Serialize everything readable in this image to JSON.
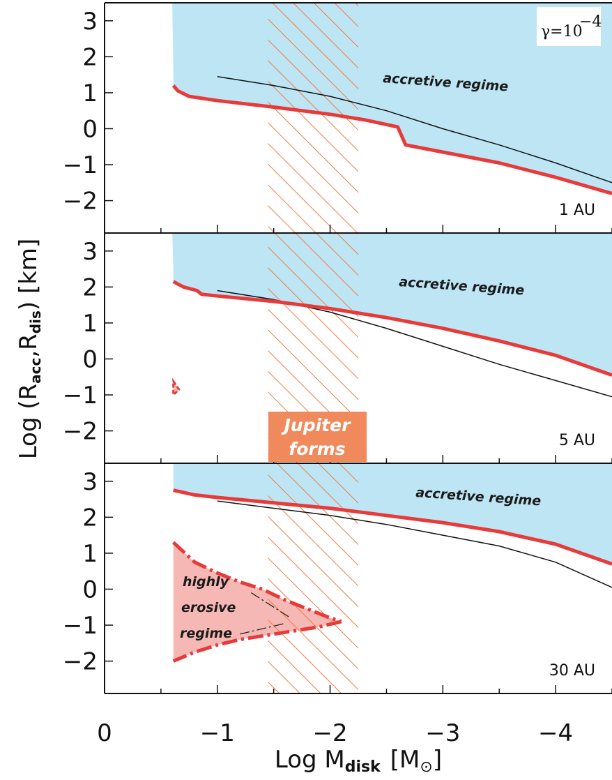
{
  "chart_data": {
    "type": "line",
    "xlabel": "Log M",
    "xlabel_sub": "disk",
    "xlabel_unit_open": "[M",
    "xlabel_unit_close": "]",
    "ylabel": "Log (R",
    "ylabel_sub1": "acc",
    "ylabel_mid": ",R",
    "ylabel_sub2": "dis",
    "ylabel_end": ") [km]",
    "x_ticks": [
      "0",
      "−1",
      "−2",
      "−3",
      "−4"
    ],
    "y_ticks": [
      "3",
      "2",
      "1",
      "0",
      "−1",
      "−2"
    ],
    "gamma_label": "γ=10",
    "gamma_exp": "−4",
    "jupiter_label_1": "Jupiter",
    "jupiter_label_2": "forms",
    "jupiter_band": [
      -1.45,
      -2.25
    ],
    "xlim": [
      0,
      -4.5
    ],
    "colors": {
      "accretive_fill": "#bde5f4",
      "red_curve": "#e83a3a",
      "erosive_fill": "#f6b8b5",
      "hatch": "#f07a42",
      "jupiter_box": "#f08a5c",
      "black_curve": "#111111"
    },
    "panels": [
      {
        "label": "1 AU",
        "regime_label": "accretive regime",
        "ylim": [
          -2.9,
          3.5
        ],
        "accretive_left_edge": [
          [
            -0.6,
            3.5
          ],
          [
            -0.61,
            1.6
          ]
        ],
        "red_curve": [
          [
            -0.61,
            1.2
          ],
          [
            -0.65,
            1.05
          ],
          [
            -0.75,
            0.9
          ],
          [
            -1.0,
            0.78
          ],
          [
            -1.5,
            0.6
          ],
          [
            -2.0,
            0.4
          ],
          [
            -2.3,
            0.25
          ],
          [
            -2.6,
            0.05
          ],
          [
            -2.67,
            -0.45
          ],
          [
            -3.0,
            -0.65
          ],
          [
            -3.5,
            -0.95
          ],
          [
            -4.0,
            -1.35
          ],
          [
            -4.5,
            -1.8
          ]
        ],
        "black_curve": [
          [
            -1.0,
            1.45
          ],
          [
            -1.5,
            1.2
          ],
          [
            -2.0,
            0.9
          ],
          [
            -2.5,
            0.5
          ],
          [
            -3.0,
            0.0
          ],
          [
            -3.5,
            -0.45
          ],
          [
            -4.0,
            -0.95
          ],
          [
            -4.5,
            -1.5
          ]
        ]
      },
      {
        "label": "5 AU",
        "regime_label": "accretive regime",
        "ylim": [
          -2.9,
          3.5
        ],
        "accretive_left_edge": [
          [
            -0.6,
            3.5
          ],
          [
            -0.61,
            2.5
          ]
        ],
        "red_curve": [
          [
            -0.61,
            2.15
          ],
          [
            -0.7,
            2.0
          ],
          [
            -0.82,
            1.9
          ],
          [
            -0.86,
            1.8
          ],
          [
            -1.0,
            1.75
          ],
          [
            -1.5,
            1.6
          ],
          [
            -2.0,
            1.4
          ],
          [
            -2.5,
            1.15
          ],
          [
            -3.0,
            0.85
          ],
          [
            -3.5,
            0.5
          ],
          [
            -4.0,
            0.1
          ],
          [
            -4.5,
            -0.45
          ]
        ],
        "black_curve": [
          [
            -1.0,
            1.9
          ],
          [
            -1.5,
            1.65
          ],
          [
            -2.0,
            1.3
          ],
          [
            -2.5,
            0.85
          ],
          [
            -3.0,
            0.35
          ],
          [
            -3.5,
            -0.15
          ],
          [
            -4.0,
            -0.6
          ],
          [
            -4.5,
            -1.05
          ]
        ],
        "small_erosive_patch": [
          [
            -0.61,
            -0.62
          ],
          [
            -0.66,
            -0.85
          ],
          [
            -0.61,
            -1.0
          ]
        ]
      },
      {
        "label": "30 AU",
        "regime_label": "accretive regime",
        "erosive_label_1": "highly",
        "erosive_label_2": "erosive",
        "erosive_label_3": "regime",
        "ylim": [
          -2.9,
          3.5
        ],
        "red_curve": [
          [
            -0.61,
            2.75
          ],
          [
            -0.8,
            2.62
          ],
          [
            -1.0,
            2.55
          ],
          [
            -1.5,
            2.4
          ],
          [
            -2.0,
            2.25
          ],
          [
            -2.5,
            2.05
          ],
          [
            -3.0,
            1.85
          ],
          [
            -3.5,
            1.6
          ],
          [
            -4.0,
            1.25
          ],
          [
            -4.5,
            0.7
          ]
        ],
        "black_curve": [
          [
            -1.0,
            2.45
          ],
          [
            -1.5,
            2.25
          ],
          [
            -2.0,
            2.05
          ],
          [
            -2.5,
            1.8
          ],
          [
            -3.0,
            1.5
          ],
          [
            -3.5,
            1.2
          ],
          [
            -4.0,
            0.75
          ],
          [
            -4.5,
            0.05
          ]
        ],
        "erosive_upper": [
          [
            -0.61,
            1.3
          ],
          [
            -0.8,
            0.75
          ],
          [
            -1.0,
            0.45
          ],
          [
            -1.2,
            0.2
          ],
          [
            -1.4,
            0.0
          ],
          [
            -1.6,
            -0.3
          ],
          [
            -1.8,
            -0.55
          ],
          [
            -2.0,
            -0.8
          ],
          [
            -2.1,
            -0.9
          ]
        ],
        "erosive_lower": [
          [
            -2.1,
            -0.9
          ],
          [
            -1.9,
            -1.05
          ],
          [
            -1.5,
            -1.25
          ],
          [
            -1.2,
            -1.4
          ],
          [
            -1.0,
            -1.55
          ],
          [
            -0.8,
            -1.75
          ],
          [
            -0.61,
            -2.0
          ]
        ],
        "erosive_pointers": [
          [
            [
              -1.3,
              -0.1
            ],
            [
              -1.65,
              -0.8
            ]
          ],
          [
            [
              -1.2,
              -1.25
            ],
            [
              -1.6,
              -0.95
            ]
          ]
        ]
      }
    ]
  }
}
